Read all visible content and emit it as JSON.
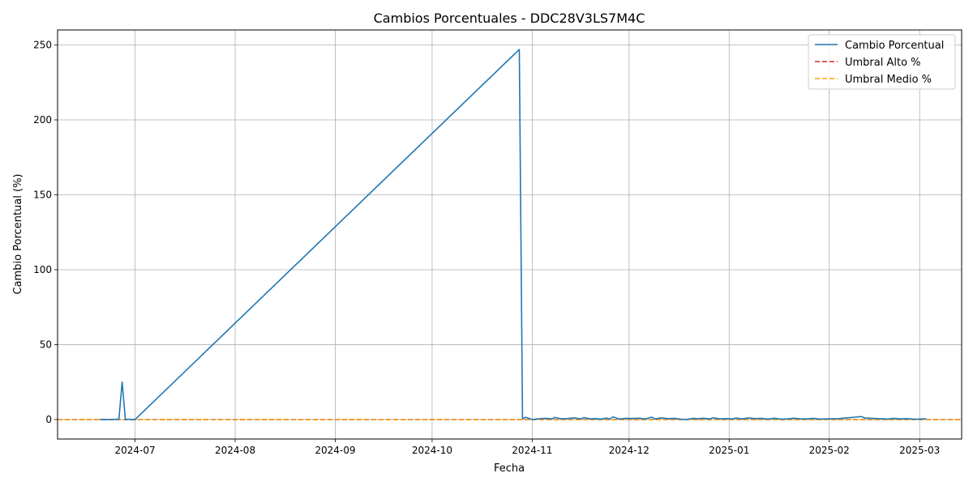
{
  "chart_data": {
    "type": "line",
    "title": "Cambios Porcentuales - DDC28V3LS7M4C",
    "xlabel": "Fecha",
    "ylabel": "Cambio Porcentual (%)",
    "xlim": [
      "2024-06-07",
      "2025-03-14"
    ],
    "ylim": [
      -13,
      260
    ],
    "x_ticks": [
      "2024-07",
      "2024-08",
      "2024-09",
      "2024-10",
      "2024-11",
      "2024-12",
      "2025-01",
      "2025-02",
      "2025-03"
    ],
    "x_tick_dates": [
      "2024-07-01",
      "2024-08-01",
      "2024-09-01",
      "2024-10-01",
      "2024-11-01",
      "2024-12-01",
      "2025-01-01",
      "2025-02-01",
      "2025-03-01"
    ],
    "y_ticks": [
      0,
      50,
      100,
      150,
      200,
      250
    ],
    "grid": true,
    "legend_position": "top-right",
    "colors": {
      "cambio": "#1f77b4",
      "umbral_alto": "#d62728",
      "umbral_medio": "#ff9f0e",
      "grid": "#b0b0b0"
    },
    "series": [
      {
        "name": "Cambio Porcentual",
        "style": "solid",
        "color": "#1f77b4",
        "points": [
          [
            "2024-06-20",
            0
          ],
          [
            "2024-06-22",
            0
          ],
          [
            "2024-06-24",
            0
          ],
          [
            "2024-06-26",
            0.3
          ],
          [
            "2024-06-27",
            25
          ],
          [
            "2024-06-28",
            0
          ],
          [
            "2024-06-29",
            0.2
          ],
          [
            "2024-06-30",
            0
          ],
          [
            "2024-07-01",
            0
          ],
          [
            "2024-10-28",
            247
          ],
          [
            "2024-10-29",
            0.5
          ],
          [
            "2024-10-30",
            1.5
          ],
          [
            "2024-11-01",
            0
          ],
          [
            "2024-11-03",
            0.5
          ],
          [
            "2024-11-05",
            0.8
          ],
          [
            "2024-11-07",
            0.4
          ],
          [
            "2024-11-08",
            1.4
          ],
          [
            "2024-11-10",
            0.5
          ],
          [
            "2024-11-12",
            0.7
          ],
          [
            "2024-11-14",
            1.1
          ],
          [
            "2024-11-16",
            0.4
          ],
          [
            "2024-11-17",
            1.3
          ],
          [
            "2024-11-19",
            0.4
          ],
          [
            "2024-11-21",
            0.7
          ],
          [
            "2024-11-22",
            0.2
          ],
          [
            "2024-11-24",
            1.0
          ],
          [
            "2024-11-25",
            0.3
          ],
          [
            "2024-11-26",
            1.8
          ],
          [
            "2024-11-28",
            0.3
          ],
          [
            "2024-11-30",
            0.8
          ],
          [
            "2024-12-02",
            0.7
          ],
          [
            "2024-12-04",
            0.9
          ],
          [
            "2024-12-06",
            0.4
          ],
          [
            "2024-12-08",
            1.6
          ],
          [
            "2024-12-09",
            0.4
          ],
          [
            "2024-12-11",
            1.1
          ],
          [
            "2024-12-13",
            0.6
          ],
          [
            "2024-12-15",
            0.8
          ],
          [
            "2024-12-17",
            0.2
          ],
          [
            "2024-12-19",
            0.1
          ],
          [
            "2024-12-21",
            0.8
          ],
          [
            "2024-12-22",
            0.5
          ],
          [
            "2024-12-24",
            0.9
          ],
          [
            "2024-12-26",
            0.4
          ],
          [
            "2024-12-27",
            1.2
          ],
          [
            "2024-12-29",
            0.5
          ],
          [
            "2024-12-31",
            0.6
          ],
          [
            "2025-01-02",
            0.4
          ],
          [
            "2025-01-03",
            1.0
          ],
          [
            "2025-01-05",
            0.4
          ],
          [
            "2025-01-07",
            1.1
          ],
          [
            "2025-01-09",
            0.6
          ],
          [
            "2025-01-11",
            0.8
          ],
          [
            "2025-01-13",
            0.3
          ],
          [
            "2025-01-15",
            0.9
          ],
          [
            "2025-01-17",
            0.3
          ],
          [
            "2025-01-19",
            0.4
          ],
          [
            "2025-01-21",
            0.9
          ],
          [
            "2025-01-23",
            0.5
          ],
          [
            "2025-01-25",
            0.4
          ],
          [
            "2025-01-27",
            0.8
          ],
          [
            "2025-01-29",
            0.3
          ],
          [
            "2025-02-01",
            0.5
          ],
          [
            "2025-02-04",
            0.6
          ],
          [
            "2025-02-06",
            1.0
          ],
          [
            "2025-02-09",
            1.6
          ],
          [
            "2025-02-11",
            2.0
          ],
          [
            "2025-02-12",
            1.0
          ],
          [
            "2025-02-14",
            0.8
          ],
          [
            "2025-02-16",
            0.6
          ],
          [
            "2025-02-18",
            0.5
          ],
          [
            "2025-02-19",
            0.3
          ],
          [
            "2025-02-21",
            0.8
          ],
          [
            "2025-02-23",
            0.4
          ],
          [
            "2025-02-25",
            0.6
          ],
          [
            "2025-02-27",
            0.3
          ],
          [
            "2025-03-01",
            0.3
          ],
          [
            "2025-03-03",
            0.5
          ]
        ]
      },
      {
        "name": "Umbral Alto %",
        "style": "dashed",
        "color": "#d62728",
        "value": 0
      },
      {
        "name": "Umbral Medio %",
        "style": "dashed",
        "color": "#ff9f0e",
        "value": 0
      }
    ]
  }
}
